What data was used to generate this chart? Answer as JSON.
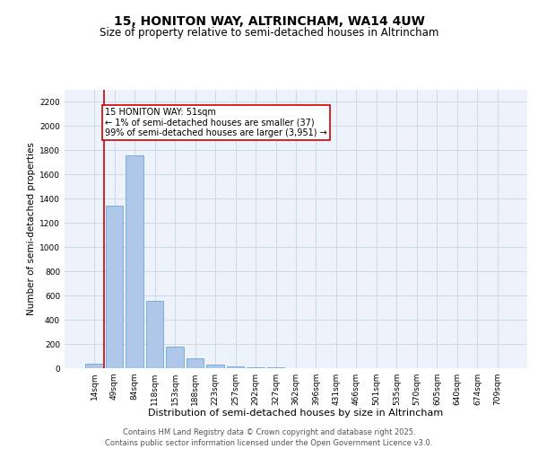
{
  "title": "15, HONITON WAY, ALTRINCHAM, WA14 4UW",
  "subtitle": "Size of property relative to semi-detached houses in Altrincham",
  "xlabel": "Distribution of semi-detached houses by size in Altrincham",
  "ylabel": "Number of semi-detached properties",
  "categories": [
    "14sqm",
    "49sqm",
    "84sqm",
    "118sqm",
    "153sqm",
    "188sqm",
    "223sqm",
    "257sqm",
    "292sqm",
    "327sqm",
    "362sqm",
    "396sqm",
    "431sqm",
    "466sqm",
    "501sqm",
    "535sqm",
    "570sqm",
    "605sqm",
    "640sqm",
    "674sqm",
    "709sqm"
  ],
  "values": [
    37,
    1340,
    1760,
    560,
    180,
    80,
    30,
    15,
    10,
    6,
    0,
    0,
    0,
    0,
    0,
    0,
    0,
    0,
    0,
    0,
    0
  ],
  "bar_color": "#aec6e8",
  "bar_edge_color": "#5a9fd4",
  "highlight_line_color": "#cc0000",
  "annotation_box_color": "#cc0000",
  "annotation_text": "15 HONITON WAY: 51sqm\n← 1% of semi-detached houses are smaller (37)\n99% of semi-detached houses are larger (3,951) →",
  "ylim": [
    0,
    2300
  ],
  "yticks": [
    0,
    200,
    400,
    600,
    800,
    1000,
    1200,
    1400,
    1600,
    1800,
    2000,
    2200
  ],
  "grid_color": "#d0d8e8",
  "bg_color": "#eef2fa",
  "footer_line1": "Contains HM Land Registry data © Crown copyright and database right 2025.",
  "footer_line2": "Contains public sector information licensed under the Open Government Licence v3.0.",
  "title_fontsize": 10,
  "subtitle_fontsize": 8.5,
  "xlabel_fontsize": 8,
  "ylabel_fontsize": 7.5,
  "tick_fontsize": 6.5,
  "annotation_fontsize": 7,
  "footer_fontsize": 6
}
